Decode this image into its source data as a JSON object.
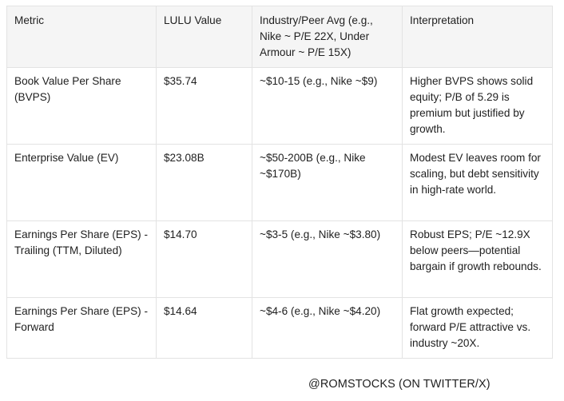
{
  "table": {
    "headers": [
      "Metric",
      "LULU Value",
      "Industry/Peer Avg (e.g., Nike ~ P/E 22X, Under Armour ~ P/E 15X)",
      "Interpretation"
    ],
    "rows": [
      {
        "metric": "Book Value Per Share (BVPS)",
        "value": "$35.74",
        "peer": "~$10-15 (e.g., Nike ~$9)",
        "interpretation": "Higher BVPS shows solid equity; P/B of 5.29 is premium but justified by growth."
      },
      {
        "metric": "Enterprise Value (EV)",
        "value": "$23.08B",
        "peer": "~$50-200B (e.g., Nike ~$170B)",
        "interpretation": "Modest EV leaves room for scaling, but debt sensitivity in high-rate world."
      },
      {
        "metric": "Earnings Per Share (EPS) - Trailing (TTM, Diluted)",
        "value": "$14.70",
        "peer": "~$3-5 (e.g., Nike ~$3.80)",
        "interpretation": "Robust EPS; P/E ~12.9X below peers—potential bargain if growth rebounds."
      },
      {
        "metric": "Earnings Per Share (EPS) - Forward",
        "value": "$14.64",
        "peer": "~$4-6 (e.g., Nike ~$4.20)",
        "interpretation": "Flat growth expected; forward P/E attractive vs. industry ~20X."
      }
    ]
  },
  "footer": {
    "credit": "@ROMSTOCKS (ON TWITTER/X)"
  }
}
